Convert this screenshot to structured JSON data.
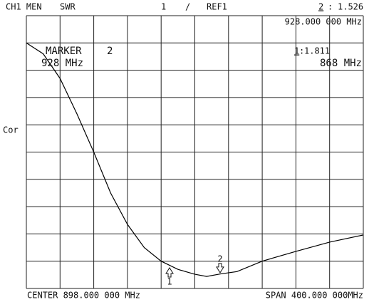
{
  "chart_data": {
    "type": "line",
    "header": {
      "channel": "CH1 MEN",
      "format": "SWR",
      "scale": 1,
      "scale_sep": "/",
      "reference": "REF1"
    },
    "side_label": "Cor",
    "center": "CENTER 898.000 000 MHz",
    "span": "SPAN 400.000 000MHz",
    "x": [
      698,
      718,
      738,
      758,
      778,
      798,
      818,
      838,
      858,
      878,
      898,
      912,
      928,
      948,
      978,
      1018,
      1058,
      1098
    ],
    "values": [
      10.0,
      9.6,
      8.7,
      7.4,
      6.0,
      4.5,
      3.35,
      2.5,
      2.0,
      1.7,
      1.52,
      1.44,
      1.53,
      1.62,
      2.0,
      2.36,
      2.7,
      2.96
    ],
    "color": "#000000",
    "xlim": [
      698,
      1098
    ],
    "ylim": [
      1,
      11
    ],
    "grid_divisions": [
      10,
      10
    ],
    "markers": [
      {
        "label": "1",
        "x": 868,
        "value": 1.811
      },
      {
        "label": "2",
        "x": 928,
        "value": 1.526
      }
    ],
    "readout_top": {
      "sep": ":",
      "freq": "928.000 000 MHz"
    },
    "marker_box": {
      "title": "MARKER",
      "freq": "928 MHz"
    },
    "marker_ref": {
      "sep": ":",
      "freq": "868 MHz"
    }
  }
}
